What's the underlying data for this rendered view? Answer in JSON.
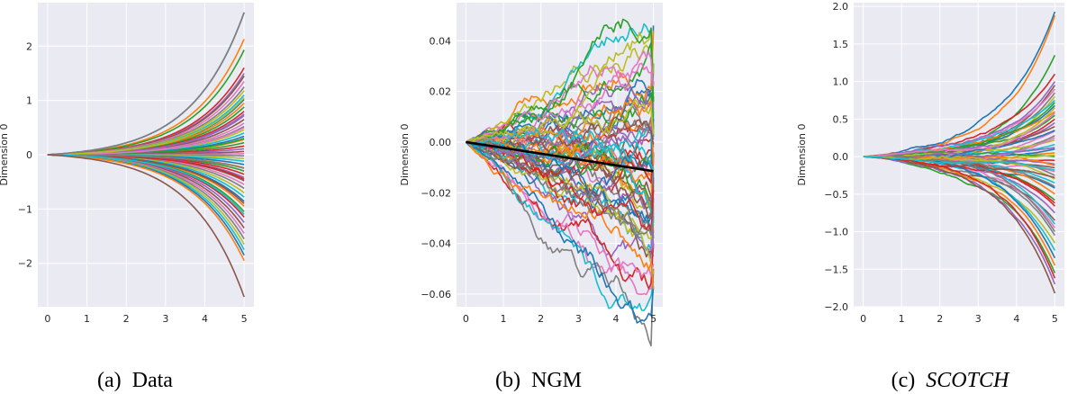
{
  "colors": {
    "panel_bg": "#eaeaf2",
    "grid": "#ffffff",
    "palette": [
      "#1f77b4",
      "#ff7f0e",
      "#2ca02c",
      "#d62728",
      "#9467bd",
      "#8c564b",
      "#e377c2",
      "#7f7f7f",
      "#bcbd22",
      "#17becf"
    ],
    "mean_line": "#000000"
  },
  "chart_data": [
    {
      "type": "line",
      "caption_prefix": "(a)",
      "caption_name": "Data",
      "caption_italic": false,
      "ylabel": "Dimension 0",
      "xlim": [
        -0.25,
        5.25
      ],
      "ylim": [
        -2.8,
        2.8
      ],
      "xticks": [
        0,
        1,
        2,
        3,
        4,
        5
      ],
      "yticks": [
        -2,
        -1,
        0,
        1,
        2
      ],
      "ytick_labels": [
        "−2",
        "−1",
        "0",
        "1",
        "2"
      ],
      "series_description": "about 60 sample trajectories starting at 0 and fanning out exponentially",
      "n_series": 60,
      "x_end": 5,
      "initial_value": 0,
      "final_values": [
        2.62,
        2.13,
        1.93,
        1.6,
        1.5,
        1.45,
        1.35,
        1.25,
        1.18,
        1.1,
        1.02,
        0.95,
        0.88,
        0.8,
        0.72,
        0.65,
        0.58,
        0.52,
        0.46,
        0.4,
        0.34,
        0.28,
        0.22,
        0.16,
        0.11,
        0.06,
        0.02,
        -0.02,
        -0.07,
        -0.12,
        -0.18,
        -0.24,
        -0.3,
        -0.36,
        -0.42,
        -0.48,
        -0.55,
        -0.62,
        -0.7,
        -0.78,
        -0.86,
        -0.95,
        -1.05,
        -1.15,
        -1.25,
        -1.35,
        -1.45,
        -1.55,
        -1.65,
        -1.75,
        -1.85,
        -1.95,
        0.3,
        -0.45,
        0.75,
        -0.9,
        0.5,
        -0.25,
        1.05,
        -1.1
      ],
      "highlight_series": [
        {
          "final_value": 2.62,
          "color": "#7f7f7f"
        },
        {
          "final_value": -2.62,
          "color": "#8c564b"
        }
      ],
      "noise": 0.0
    },
    {
      "type": "line",
      "caption_prefix": "(b)",
      "caption_name": "NGM",
      "caption_italic": false,
      "ylabel": "Dimension 0",
      "xlim": [
        -0.25,
        5.25
      ],
      "ylim": [
        -0.065,
        0.055
      ],
      "xticks": [
        0,
        1,
        2,
        3,
        4,
        5
      ],
      "yticks": [
        -0.06,
        -0.04,
        -0.02,
        0.0,
        0.02,
        0.04
      ],
      "ytick_labels": [
        "−0.06",
        "−0.04",
        "−0.02",
        "0.00",
        "0.02",
        "0.04"
      ],
      "series_description": "about 60 noisy random-walk trajectories between roughly -0.06 and 0.05, with a black mean line from 0 at x=0 to about -0.011 at x=5",
      "n_series": 60,
      "x_end": 5,
      "initial_value": 0,
      "final_values": [
        0.046,
        0.044,
        0.031,
        0.024,
        0.021,
        0.018,
        0.015,
        0.012,
        0.01,
        0.008,
        0.006,
        0.004,
        0.002,
        0.0,
        -0.002,
        -0.004,
        -0.006,
        -0.008,
        -0.01,
        -0.012,
        -0.014,
        -0.016,
        -0.018,
        -0.02,
        -0.022,
        -0.024,
        -0.026,
        -0.028,
        -0.03,
        -0.032,
        -0.034,
        -0.036,
        -0.038,
        -0.04,
        -0.042,
        -0.045,
        -0.048,
        -0.05,
        -0.052,
        -0.055,
        -0.057,
        -0.058,
        0.005,
        -0.005,
        0.013,
        -0.015,
        0.019,
        -0.025,
        0.027,
        -0.033,
        0.009,
        -0.009,
        0.016,
        -0.019,
        0.001,
        -0.001,
        0.022,
        -0.029,
        0.003,
        -0.011
      ],
      "mean_line": {
        "x": [
          0,
          5
        ],
        "y": [
          0.0,
          -0.0115
        ]
      },
      "noise": 0.0034
    },
    {
      "type": "line",
      "caption_prefix": "(c)",
      "caption_name": "SCOTCH",
      "caption_italic": true,
      "ylabel": "Dimension 0",
      "xlim": [
        -0.25,
        5.25
      ],
      "ylim": [
        -2.0,
        2.05
      ],
      "xticks": [
        0,
        1,
        2,
        3,
        4,
        5
      ],
      "yticks": [
        -2.0,
        -1.5,
        -1.0,
        -0.5,
        0.0,
        0.5,
        1.0,
        1.5,
        2.0
      ],
      "ytick_labels": [
        "−2.0",
        "−1.5",
        "−1.0",
        "−0.5",
        "0.0",
        "0.5",
        "1.0",
        "1.5",
        "2.0"
      ],
      "series_description": "about 60 trajectories starting at 0 with slight early wiggles, fanning out exponentially",
      "n_series": 60,
      "x_end": 5,
      "initial_value": 0,
      "final_values": [
        1.93,
        1.88,
        1.35,
        1.1,
        1.0,
        0.95,
        0.9,
        0.85,
        0.8,
        0.75,
        0.68,
        0.6,
        0.55,
        0.5,
        0.45,
        0.4,
        0.34,
        0.28,
        0.22,
        0.16,
        0.1,
        0.05,
        0.0,
        -0.05,
        -0.1,
        -0.15,
        -0.2,
        -0.25,
        -0.3,
        -0.35,
        -0.42,
        -0.5,
        -0.58,
        -0.66,
        -0.75,
        -0.85,
        -0.95,
        -1.05,
        -1.15,
        -1.25,
        -1.35,
        -1.45,
        -1.55,
        -1.62,
        -1.7,
        -1.82,
        0.25,
        -0.4,
        0.65,
        -0.9,
        0.35,
        -0.12,
        0.72,
        -0.62,
        0.12,
        -0.28,
        0.58,
        -1.0,
        0.02,
        -0.18
      ],
      "noise": 0.012
    }
  ]
}
